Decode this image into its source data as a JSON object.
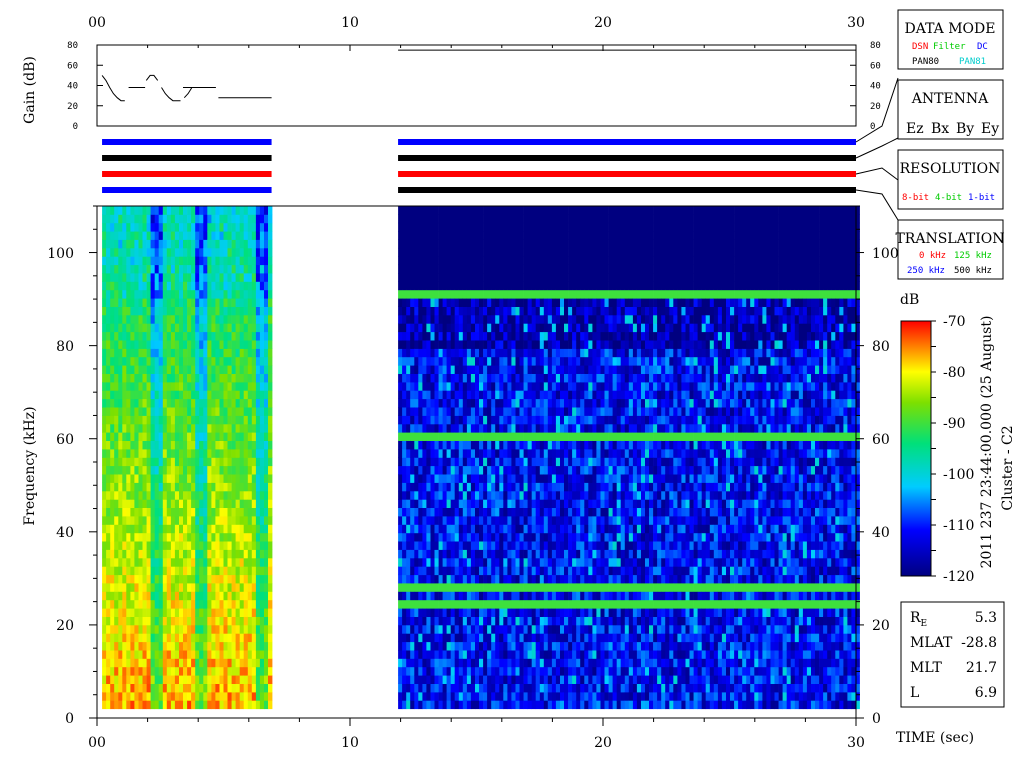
{
  "chart_data": [
    {
      "type": "line",
      "name": "gain-panel",
      "ylabel": "Gain (dB)",
      "xlim": [
        0,
        30
      ],
      "ylim": [
        0,
        80
      ],
      "y_ticks": [
        "0",
        "20",
        "40",
        "60",
        "80"
      ],
      "top_x_ticks": [
        "00",
        "10",
        "20",
        "30"
      ],
      "segments": [
        {
          "x": [
            0.2,
            0.35,
            0.5,
            0.65,
            0.8,
            0.95,
            1.1
          ],
          "y": [
            50,
            45,
            38,
            32,
            28,
            25,
            25
          ]
        },
        {
          "x": [
            1.25,
            1.9
          ],
          "y": [
            38,
            38
          ]
        },
        {
          "x": [
            1.95,
            2.1,
            2.25,
            2.4
          ],
          "y": [
            45,
            50,
            50,
            45
          ]
        },
        {
          "x": [
            2.55,
            2.7,
            2.85,
            3.0,
            3.15,
            3.3
          ],
          "y": [
            38,
            32,
            28,
            25,
            25,
            25
          ]
        },
        {
          "x": [
            3.45,
            3.6,
            3.75
          ],
          "y": [
            28,
            32,
            38
          ]
        },
        {
          "x": [
            3.4,
            4.7
          ],
          "y": [
            38,
            38
          ]
        },
        {
          "x": [
            4.8,
            6.9
          ],
          "y": [
            28,
            28
          ]
        },
        {
          "x": [
            11.9,
            30
          ],
          "y": [
            75,
            75
          ]
        }
      ]
    },
    {
      "type": "bar",
      "name": "mode-status-bars",
      "rows": [
        "DATA MODE",
        "ANTENNA",
        "RESOLUTION",
        "TRANSLATION"
      ],
      "intervals": [
        {
          "x": [
            0.2,
            6.9
          ],
          "colors": [
            "#0000ff",
            "#000000",
            "#ff0000",
            "#0000ff"
          ]
        },
        {
          "x": [
            11.9,
            30
          ],
          "colors": [
            "#0000ff",
            "#000000",
            "#ff0000",
            "#000000"
          ]
        }
      ]
    },
    {
      "type": "heatmap",
      "name": "spectrogram",
      "xlabel": "TIME (sec)",
      "ylabel": "Frequency (kHz)",
      "xlim": [
        0,
        30
      ],
      "ylim": [
        0,
        110
      ],
      "x_ticks": [
        "00",
        "10",
        "20",
        "30"
      ],
      "y_ticks": [
        "0",
        "20",
        "40",
        "60",
        "80",
        "100"
      ],
      "colorbar": {
        "label": "dB",
        "range": [
          -120,
          -70
        ],
        "ticks": [
          "-70",
          "-80",
          "-90",
          "-100",
          "-110",
          "-120"
        ]
      },
      "blocks": [
        {
          "x": [
            0.2,
            6.9
          ],
          "y": [
            2,
            110
          ],
          "level_db": [
            -95,
            -70
          ],
          "vertical_bright_stripes_at": [
            2.3,
            4.1,
            6.4
          ]
        },
        {
          "x": [
            11.9,
            30
          ],
          "y": [
            2,
            110
          ],
          "level_db": [
            -120,
            -100
          ],
          "background_above_90kHz_db": -120,
          "horizontal_lines_kHz": [
            24,
            28,
            59,
            89.5
          ]
        }
      ]
    }
  ],
  "legend_boxes": [
    {
      "title": "DATA MODE",
      "entries": [
        {
          "text": "DSN",
          "color": "#ff0000"
        },
        {
          "text": "Filter",
          "color": "#00cc00"
        },
        {
          "text": "DC",
          "color": "#0000ff"
        },
        {
          "text": "PAN80",
          "color": "#000000"
        },
        {
          "text": "PAN81",
          "color": "#00cccc"
        }
      ]
    },
    {
      "title": "ANTENNA",
      "entries": [
        {
          "text": "Ez",
          "color": "#ff0000"
        },
        {
          "text": "Bx",
          "color": "#00cc00"
        },
        {
          "text": "By",
          "color": "#0000ff"
        },
        {
          "text": "Ey",
          "color": "#000000"
        }
      ]
    },
    {
      "title": "RESOLUTION",
      "entries": [
        {
          "text": "8-bit",
          "color": "#ff0000"
        },
        {
          "text": "4-bit",
          "color": "#00cc00"
        },
        {
          "text": "1-bit",
          "color": "#0000ff"
        }
      ]
    },
    {
      "title": "TRANSLATION",
      "entries": [
        {
          "text": "0 kHz",
          "color": "#ff0000"
        },
        {
          "text": "125 kHz",
          "color": "#00cc00"
        },
        {
          "text": "250 kHz",
          "color": "#0000ff"
        },
        {
          "text": "500 kHz",
          "color": "#000000"
        }
      ]
    }
  ],
  "side_title": "2011 237 23:44:00.000 (25 August)",
  "spacecraft": "Cluster - C2",
  "orbit": {
    "re_label": "R",
    "re_sub": "E",
    "re_value": "5.3",
    "mlat_label": "MLAT",
    "mlat_value": "-28.8",
    "mlt_label": "MLT",
    "mlt_value": "21.7",
    "l_label": "L",
    "l_value": "6.9"
  }
}
